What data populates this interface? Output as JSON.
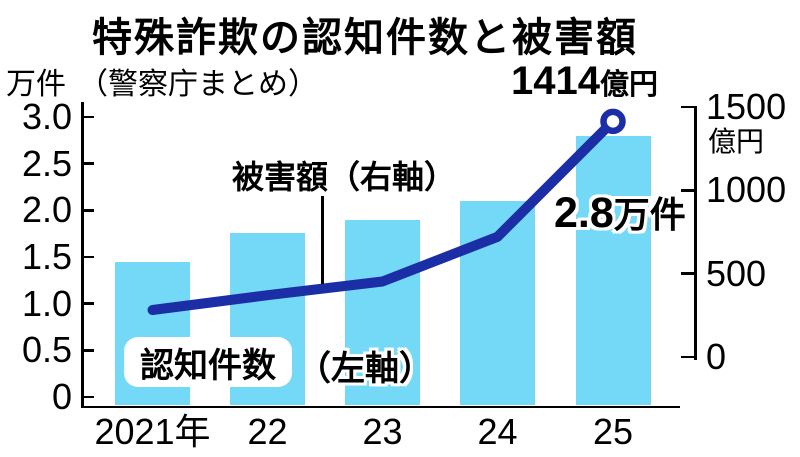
{
  "header": {
    "title": "特殊詐欺の認知件数と被害額",
    "source_note": "（警察庁まとめ）"
  },
  "left_axis": {
    "unit": "万件",
    "tick_labels": [
      "0",
      "0.5",
      "1.0",
      "1.5",
      "2.0",
      "2.5",
      "3.0"
    ],
    "tick_values": [
      0,
      0.5,
      1.0,
      1.5,
      2.0,
      2.5,
      3.0
    ],
    "max": 3.0
  },
  "right_axis": {
    "unit": "億円",
    "tick_labels": [
      "0",
      "500",
      "1000",
      "1500"
    ],
    "tick_values": [
      0,
      500,
      1000,
      1500
    ],
    "max": 1500
  },
  "x_axis": {
    "labels": [
      "2021年",
      "22",
      "23",
      "24",
      "25"
    ]
  },
  "annotations": {
    "line_series_label": "被害額（右軸）",
    "bar_series_label": "認知件数",
    "bar_series_axis": "（左軸）",
    "peak_damage_number": "1414",
    "peak_damage_unit": "億円",
    "peak_cases_number": "2.8",
    "peak_cases_unit": "万件"
  },
  "chart_data": {
    "type": "bar+line",
    "categories": [
      "2021",
      "2022",
      "2023",
      "2024",
      "2025"
    ],
    "series": [
      {
        "name": "認知件数",
        "type": "bar",
        "axis": "left",
        "unit": "万件",
        "values": [
          1.45,
          1.76,
          1.9,
          2.1,
          2.8
        ]
      },
      {
        "name": "被害額",
        "type": "line",
        "axis": "right",
        "unit": "億円",
        "values": [
          282,
          371,
          453,
          721,
          1414
        ]
      }
    ],
    "left_ylim": [
      0,
      3.0
    ],
    "right_ylim": [
      0,
      1500
    ],
    "title": "特殊詐欺の認知件数と被害額",
    "legend_position": "inline-annotations",
    "grid": false,
    "colors": {
      "bar": "#74d9f7",
      "line": "#1c2ea5"
    }
  }
}
